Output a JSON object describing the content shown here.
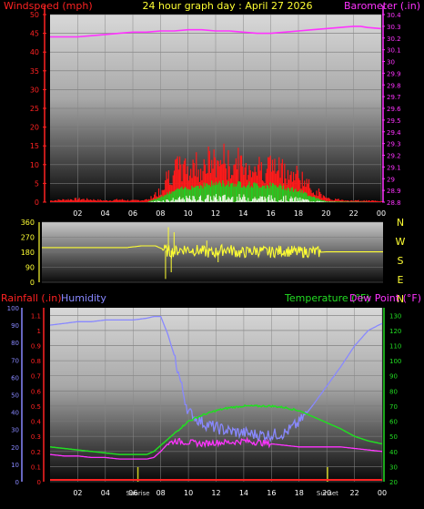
{
  "header": {
    "left_title": "Windspeed (mph)",
    "center_title": "24 hour graph day : April 27 2026",
    "right_title": "Barometer (.in)"
  },
  "colors": {
    "wind_gust": "#ff1a1a",
    "wind_avg": "#22cc22",
    "wind_min": "#e8ffe8",
    "barometer": "#ff33ff",
    "direction": "#ffff33",
    "rainfall": "#ff2222",
    "humidity": "#8888ff",
    "temperature": "#22dd22",
    "dewpoint": "#ff33ff",
    "sun_marker": "#cccc22"
  },
  "x_ticks": [
    "02",
    "04",
    "06",
    "08",
    "10",
    "12",
    "14",
    "16",
    "18",
    "20",
    "22",
    "00"
  ],
  "bottom_x_ticks": [
    "02",
    "04",
    "06",
    "08",
    "10",
    "12",
    "14",
    "16",
    "18",
    "20",
    "22",
    "00"
  ],
  "sun_labels": [
    "Sunrise",
    "Sunset"
  ],
  "panel3_headers": {
    "rainfall": "Rainfall (.in)",
    "humidity": "Humidity",
    "temperature": "Temperature (°F)",
    "dewpoint": "Dew Point (°F)"
  },
  "compass_letters": [
    "N",
    "W",
    "S",
    "E",
    "N"
  ],
  "chart_data": [
    {
      "type": "area",
      "title": "24 hour graph day : April 27 2026",
      "x_unit": "hour",
      "xlim": [
        0,
        24
      ],
      "y_left": {
        "label": "Windspeed (mph)",
        "ticks": [
          "0",
          "5",
          "10",
          "15",
          "20",
          "25",
          "30",
          "35",
          "40",
          "45",
          "50"
        ],
        "range": [
          0,
          50
        ]
      },
      "y_right": {
        "label": "Barometer (.in)",
        "ticks": [
          "28.8",
          "28.9",
          "29",
          "29.1",
          "29.2",
          "29.3",
          "29.4",
          "29.5",
          "29.6",
          "29.7",
          "29.8",
          "29.9",
          "30",
          "30.1",
          "30.2",
          "30.3",
          "30.4"
        ],
        "range": [
          28.8,
          30.4
        ]
      },
      "series": [
        {
          "name": "Barometer (.in)",
          "axis": "right",
          "x": [
            0,
            1,
            2,
            3,
            4,
            5,
            6,
            7,
            8,
            9,
            10,
            11,
            12,
            13,
            14,
            15,
            16,
            17,
            18,
            19,
            20,
            21,
            22,
            22.5,
            23,
            24
          ],
          "values": [
            30.21,
            30.21,
            30.21,
            30.22,
            30.23,
            30.24,
            30.25,
            30.25,
            30.26,
            30.26,
            30.27,
            30.27,
            30.26,
            30.26,
            30.25,
            30.24,
            30.24,
            30.25,
            30.26,
            30.27,
            30.28,
            30.29,
            30.3,
            30.3,
            30.29,
            30.28
          ]
        },
        {
          "name": "Wind gust",
          "axis": "left",
          "x": [
            0,
            1,
            2,
            3,
            4,
            5,
            6,
            7,
            7.5,
            8,
            8.5,
            9,
            9.5,
            10,
            10.5,
            11,
            11.5,
            12,
            12.5,
            13,
            13.5,
            14,
            14.5,
            15,
            15.5,
            16,
            16.5,
            17,
            17.5,
            18,
            18.5,
            19,
            19.5,
            20,
            21,
            22,
            23,
            24
          ],
          "values": [
            0.5,
            0.8,
            1.0,
            0.8,
            0.5,
            0.8,
            0.5,
            0.8,
            2,
            4,
            9,
            10,
            11,
            10,
            12,
            11,
            13,
            12,
            14,
            11,
            13,
            10,
            12,
            11,
            11,
            12,
            10,
            11,
            8,
            9,
            6,
            4,
            3,
            1,
            0.8,
            0.5,
            0.5,
            0.3
          ]
        },
        {
          "name": "Wind average",
          "axis": "left",
          "x": [
            0,
            7,
            8,
            9,
            10,
            11,
            12,
            13,
            14,
            15,
            16,
            17,
            18,
            19,
            20,
            24
          ],
          "values": [
            0,
            0,
            1.5,
            3,
            4,
            4.5,
            5,
            5,
            4.8,
            4.5,
            4.5,
            4,
            3,
            1.5,
            0.2,
            0
          ]
        }
      ]
    },
    {
      "type": "line",
      "x_unit": "hour",
      "xlim": [
        0,
        24
      ],
      "y_left": {
        "ticks": [
          "0",
          "90",
          "180",
          "270",
          "360"
        ],
        "range": [
          0,
          360
        ]
      },
      "series": [
        {
          "name": "Wind direction",
          "x": [
            0,
            1,
            2,
            3,
            4,
            5,
            6,
            7,
            7.5,
            8,
            9,
            10,
            11,
            12,
            13,
            14,
            15,
            16,
            17,
            18,
            19,
            19.5,
            20,
            21,
            22,
            23,
            24
          ],
          "values": [
            208,
            208,
            208,
            208,
            208,
            208,
            208,
            218,
            218,
            218,
            180,
            200,
            190,
            175,
            200,
            175,
            190,
            180,
            190,
            180,
            185,
            180,
            182,
            182,
            182,
            182,
            182
          ]
        }
      ]
    },
    {
      "type": "line",
      "x_unit": "hour",
      "xlim": [
        0,
        24
      ],
      "y_left_outer": {
        "label": "Rainfall (.in)",
        "ticks": [
          "0",
          "0.1",
          "0.2",
          "0.3",
          "0.4",
          "0.5",
          "0.6",
          "0.7",
          "0.8",
          "0.9",
          "1",
          "1.1"
        ],
        "range": [
          0,
          1.15
        ]
      },
      "y_left_inner": {
        "label": "Humidity",
        "ticks": [
          "0",
          "10",
          "20",
          "30",
          "40",
          "50",
          "60",
          "70",
          "80",
          "90",
          "100"
        ],
        "range": [
          0,
          100
        ]
      },
      "y_right": {
        "label": "Temperature (°F) Dew Point (°F)",
        "ticks": [
          "20",
          "30",
          "40",
          "50",
          "60",
          "70",
          "80",
          "90",
          "100",
          "110",
          "120",
          "130"
        ],
        "range": [
          20,
          135
        ]
      },
      "series": [
        {
          "name": "Humidity",
          "axis": "left_inner",
          "x": [
            0,
            1,
            2,
            3,
            4,
            5,
            6,
            7,
            7.5,
            8,
            8.5,
            9,
            9.5,
            10,
            11,
            12,
            13,
            14,
            15,
            16,
            17,
            18,
            19,
            20,
            21,
            22,
            23,
            24
          ],
          "values": [
            90,
            91,
            92,
            92,
            93,
            93,
            93,
            94,
            95,
            95,
            85,
            72,
            55,
            40,
            34,
            31,
            29,
            28,
            27,
            27,
            28,
            34,
            44,
            55,
            66,
            78,
            87,
            91
          ]
        },
        {
          "name": "Temperature (°F)",
          "axis": "right",
          "x": [
            0,
            1,
            2,
            3,
            4,
            5,
            6,
            7,
            7.5,
            8,
            8.5,
            9,
            9.5,
            10,
            11,
            12,
            13,
            14,
            15,
            16,
            17,
            18,
            19,
            20,
            21,
            22,
            23,
            24
          ],
          "values": [
            43,
            42,
            41,
            40,
            39,
            38,
            38,
            38,
            40,
            44,
            48,
            52,
            56,
            60,
            64,
            67,
            69,
            70,
            70,
            70,
            69,
            67,
            63,
            59,
            55,
            50,
            47,
            45
          ]
        },
        {
          "name": "Dew Point (°F)",
          "axis": "right",
          "x": [
            0,
            1,
            2,
            3,
            4,
            5,
            6,
            7,
            7.5,
            8,
            8.5,
            9,
            10,
            11,
            12,
            13,
            14,
            15,
            16,
            17,
            18,
            19,
            20,
            21,
            22,
            23,
            24
          ],
          "values": [
            38,
            37,
            37,
            36,
            36,
            35,
            35,
            35,
            36,
            40,
            45,
            47,
            46,
            45,
            46,
            46,
            47,
            46,
            45,
            44,
            43,
            43,
            43,
            43,
            42,
            41,
            40
          ]
        },
        {
          "name": "Rainfall (.in)",
          "axis": "left_outer",
          "x": [
            0,
            24
          ],
          "values": [
            0,
            0
          ]
        }
      ],
      "events": [
        {
          "label": "Sunrise",
          "x": 6.35
        },
        {
          "label": "Sunset",
          "x": 20.05
        }
      ]
    }
  ]
}
